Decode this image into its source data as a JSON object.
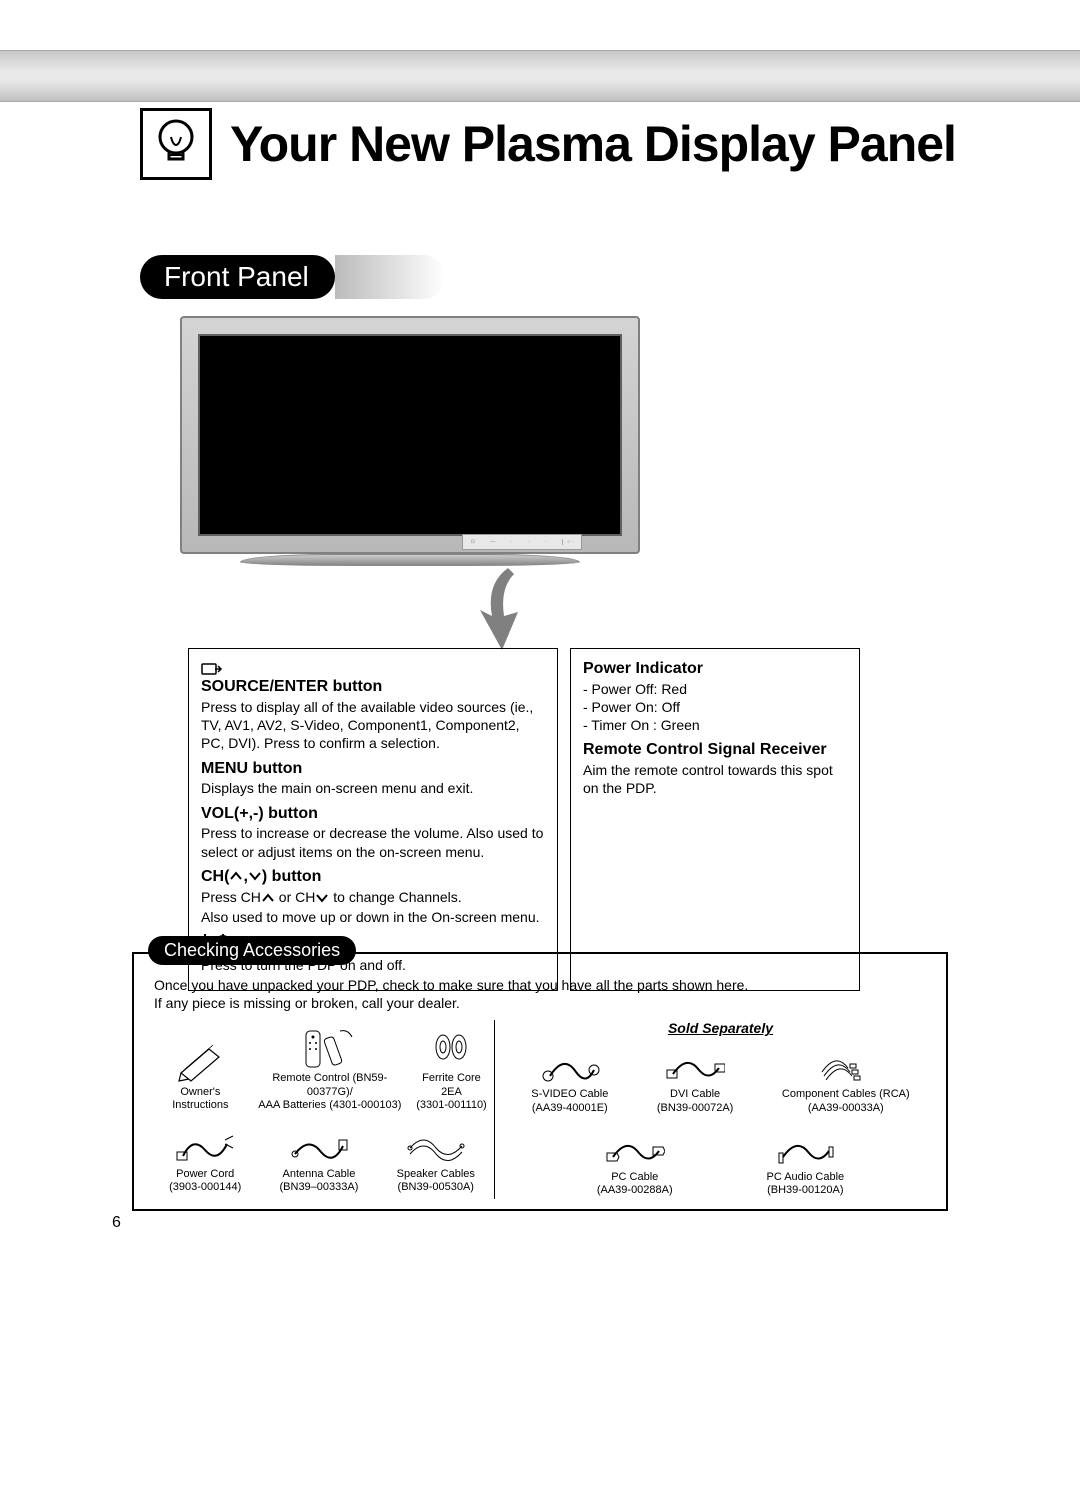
{
  "colors": {
    "page_bg": "#ffffff",
    "band_light": "#e8e8e8",
    "band_dark": "#c0c0c0",
    "pill_bg": "#000000",
    "pill_fg": "#ffffff",
    "border": "#000000",
    "tv_bezel": "#b8b8b8",
    "tv_screen": "#000000",
    "text": "#000000"
  },
  "typography": {
    "title_size_pt": 38,
    "section_size_pt": 21,
    "body_size_pt": 10.5,
    "heading_size_pt": 12,
    "caption_size_pt": 8.5
  },
  "page_number": "6",
  "title": "Your New Plasma Display Panel",
  "section": "Front Panel",
  "left_col": {
    "source": {
      "heading": "SOURCE/ENTER button",
      "text": "Press to display all of the available video sources (ie., TV, AV1, AV2, S-Video, Component1, Component2, PC, DVI). Press to confirm a selection."
    },
    "menu": {
      "heading": "MENU button",
      "text": "Displays the main on-screen menu and exit."
    },
    "vol": {
      "heading": "VOL(+,-) button",
      "text": "Press to increase or decrease the volume. Also used to select or adjust items on the on-screen menu."
    },
    "ch": {
      "heading_pre": "CH(",
      "heading_post": ") button",
      "line1_pre": "Press CH",
      "line1_mid": " or CH",
      "line1_post": " to change Channels.",
      "line2": "Also used to move up or down in the On-screen menu."
    },
    "power": {
      "symbol": "❘ / ⏻",
      "text": "Press to turn the PDP on and off."
    }
  },
  "right_col": {
    "power_ind": {
      "heading": "Power Indicator",
      "l1": "- Power Off: Red",
      "l2": "- Power On: Off",
      "l3": "- Timer On : Green"
    },
    "remote": {
      "heading": "Remote Control Signal Receiver",
      "text": "Aim the remote control towards this spot on the PDP."
    }
  },
  "accessories": {
    "tab": "Checking Accessories",
    "intro": "Once you have unpacked your PDP, check to make sure that you have all the parts shown here.\nIf any piece is missing or broken, call your dealer.",
    "sold_separately": "Sold Separately",
    "included_row1": [
      {
        "label": "Owner's Instructions",
        "sub": ""
      },
      {
        "label": "Remote Control (BN59-00377G)/",
        "sub": "AAA Batteries (4301-000103)"
      },
      {
        "label": "Ferrite Core 2EA",
        "sub": "(3301-001110)"
      }
    ],
    "included_row2": [
      {
        "label": "Power Cord",
        "sub": "(3903-000144)"
      },
      {
        "label": "Antenna Cable",
        "sub": "(BN39–00333A)"
      },
      {
        "label": "Speaker Cables",
        "sub": "(BN39-00530A)"
      }
    ],
    "separate_row1": [
      {
        "label": "S-VIDEO Cable",
        "sub": "(AA39-40001E)"
      },
      {
        "label": "DVI Cable",
        "sub": "(BN39-00072A)"
      },
      {
        "label": "Component Cables (RCA)",
        "sub": "(AA39-00033A)"
      }
    ],
    "separate_row2": [
      {
        "label": "PC Cable",
        "sub": "(AA39-00288A)"
      },
      {
        "label": "PC Audio Cable",
        "sub": "(BH39-00120A)"
      }
    ]
  }
}
